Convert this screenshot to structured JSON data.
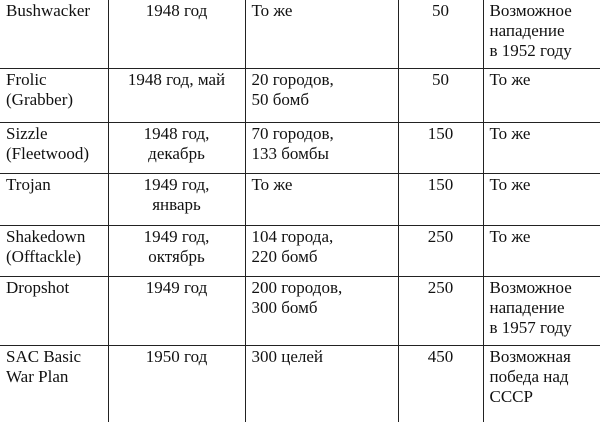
{
  "table": {
    "rows": [
      [
        "Bushwacker",
        "1948 год",
        "То же",
        "50",
        "Возможное\nнападение\nв 1952 году"
      ],
      [
        "Frolic\n(Grabber)",
        "1948 год, май",
        "20 городов,\n50 бомб",
        "50",
        "То же"
      ],
      [
        "Sizzle\n(Fleetwood)",
        "1948 год,\nдекабрь",
        "70 городов,\n133 бомбы",
        "150",
        "То же"
      ],
      [
        "Trojan",
        "1949 год,\nянварь",
        "То же",
        "150",
        "То же"
      ],
      [
        "Shakedown\n(Offtackle)",
        "1949 год,\nоктябрь",
        "104 города,\n220 бомб",
        "250",
        "То же"
      ],
      [
        "Dropshot",
        "1949 год",
        "200 городов,\n300 бомб",
        "250",
        "Возможное\nнападение\nв 1957 году"
      ],
      [
        "SAC Basic\nWar Plan",
        "1950 год",
        "300 целей",
        "450",
        "Возможная\nпобеда над\nСССР"
      ]
    ]
  }
}
